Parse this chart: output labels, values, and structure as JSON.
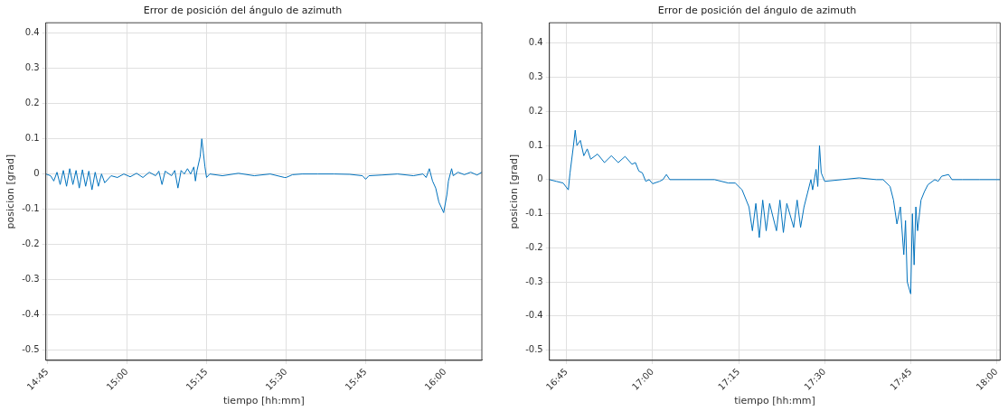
{
  "chart_data": [
    {
      "type": "line",
      "title": "Error de posición del ángulo de azimuth",
      "xlabel": "tiempo [hh:mm]",
      "ylabel": "posicion [grad]",
      "grid": true,
      "marker": "none",
      "line_style": "solid",
      "xlim": [
        14.745,
        16.115
      ],
      "ylim": [
        -0.53,
        0.43
      ],
      "xticks": [
        {
          "value": 14.75,
          "label": "14:45"
        },
        {
          "value": 15,
          "label": "15:00"
        },
        {
          "value": 15.25,
          "label": "15:15"
        },
        {
          "value": 15.5,
          "label": "15:30"
        },
        {
          "value": 15.75,
          "label": "15:45"
        },
        {
          "value": 16,
          "label": "16:00"
        }
      ],
      "yticks": [
        -0.5,
        -0.4,
        -0.3,
        -0.2,
        -0.1,
        0,
        0.1,
        0.2,
        0.3,
        0.4
      ],
      "series": [
        {
          "color": "#0072bd",
          "x": [
            14.745,
            14.76,
            14.77,
            14.78,
            14.79,
            14.8,
            14.81,
            14.82,
            14.83,
            14.84,
            14.85,
            14.86,
            14.87,
            14.88,
            14.89,
            14.9,
            14.91,
            14.92,
            14.93,
            14.95,
            14.97,
            14.99,
            15.01,
            15.03,
            15.05,
            15.07,
            15.09,
            15.1,
            15.11,
            15.12,
            15.14,
            15.15,
            15.16,
            15.17,
            15.18,
            15.19,
            15.2,
            15.21,
            15.215,
            15.22,
            15.23,
            15.235,
            15.24,
            15.245,
            15.25,
            15.26,
            15.3,
            15.35,
            15.4,
            15.45,
            15.495,
            15.5,
            15.52,
            15.55,
            15.6,
            15.65,
            15.7,
            15.74,
            15.75,
            15.76,
            15.8,
            15.85,
            15.9,
            15.93,
            15.94,
            15.95,
            15.96,
            15.97,
            15.98,
            15.995,
            16.005,
            16.01,
            16.02,
            16.025,
            16.04,
            16.06,
            16.08,
            16.1,
            16.115
          ],
          "values": [
            0,
            -0.005,
            -0.02,
            0.005,
            -0.03,
            0.01,
            -0.035,
            0.015,
            -0.03,
            0.01,
            -0.04,
            0.012,
            -0.035,
            0.008,
            -0.045,
            0.005,
            -0.035,
            0,
            -0.025,
            -0.005,
            -0.01,
            0,
            -0.008,
            0.002,
            -0.01,
            0.005,
            -0.005,
            0.008,
            -0.03,
            0.008,
            -0.005,
            0.01,
            -0.04,
            0.01,
            0,
            0.015,
            0,
            0.02,
            -0.02,
            0.01,
            0.05,
            0.1,
            0.06,
            0.02,
            -0.01,
            0,
            -0.005,
            0.002,
            -0.005,
            0,
            -0.01,
            -0.01,
            -0.002,
            0,
            0,
            0,
            -0.001,
            -0.005,
            -0.015,
            -0.005,
            -0.003,
            0,
            -0.005,
            0,
            -0.01,
            0.015,
            -0.02,
            -0.04,
            -0.08,
            -0.11,
            -0.06,
            -0.02,
            0.015,
            -0.005,
            0.005,
            -0.002,
            0.005,
            -0.003,
            0.005
          ]
        }
      ]
    },
    {
      "type": "line",
      "title": "Error de posición del ángulo de azimuth",
      "xlabel": "tiempo [hh:mm]",
      "ylabel": "posicion [grad]",
      "grid": true,
      "marker": "none",
      "line_style": "solid",
      "xlim": [
        16.7,
        18.01
      ],
      "ylim": [
        -0.53,
        0.46
      ],
      "xticks": [
        {
          "value": 16.75,
          "label": "16:45"
        },
        {
          "value": 17,
          "label": "17:00"
        },
        {
          "value": 17.25,
          "label": "17:15"
        },
        {
          "value": 17.5,
          "label": "17:30"
        },
        {
          "value": 17.75,
          "label": "17:45"
        },
        {
          "value": 18,
          "label": "18:00"
        }
      ],
      "yticks": [
        -0.5,
        -0.4,
        -0.3,
        -0.2,
        -0.1,
        0,
        0.1,
        0.2,
        0.3,
        0.4
      ],
      "series": [
        {
          "color": "#0072bd",
          "x": [
            16.7,
            16.72,
            16.74,
            16.755,
            16.76,
            16.77,
            16.775,
            16.78,
            16.79,
            16.8,
            16.81,
            16.82,
            16.84,
            16.86,
            16.88,
            16.9,
            16.92,
            16.94,
            16.95,
            16.96,
            16.97,
            16.98,
            16.99,
            17,
            17.02,
            17.03,
            17.04,
            17.05,
            17.1,
            17.15,
            17.18,
            17.2,
            17.22,
            17.24,
            17.26,
            17.28,
            17.29,
            17.3,
            17.31,
            17.32,
            17.33,
            17.34,
            17.36,
            17.37,
            17.38,
            17.39,
            17.41,
            17.42,
            17.43,
            17.44,
            17.45,
            17.46,
            17.465,
            17.475,
            17.48,
            17.485,
            17.49,
            17.5,
            17.55,
            17.6,
            17.65,
            17.67,
            17.69,
            17.7,
            17.71,
            17.72,
            17.73,
            17.735,
            17.74,
            17.75,
            17.755,
            17.76,
            17.765,
            17.77,
            17.78,
            17.79,
            17.8,
            17.82,
            17.83,
            17.84,
            17.86,
            17.87,
            17.9,
            17.95,
            18.01
          ],
          "values": [
            0,
            -0.005,
            -0.01,
            -0.03,
            0.02,
            0.1,
            0.145,
            0.1,
            0.115,
            0.07,
            0.09,
            0.06,
            0.075,
            0.05,
            0.07,
            0.05,
            0.068,
            0.045,
            0.05,
            0.025,
            0.02,
            -0.005,
            0,
            -0.012,
            -0.005,
            0,
            0.015,
            0,
            0,
            0,
            0,
            -0.005,
            -0.01,
            -0.01,
            -0.03,
            -0.08,
            -0.15,
            -0.07,
            -0.17,
            -0.06,
            -0.15,
            -0.07,
            -0.15,
            -0.06,
            -0.155,
            -0.07,
            -0.14,
            -0.06,
            -0.14,
            -0.08,
            -0.04,
            0,
            -0.03,
            0.03,
            -0.02,
            0.1,
            0.02,
            -0.005,
            0,
            0.005,
            0,
            0,
            -0.02,
            -0.06,
            -0.13,
            -0.08,
            -0.22,
            -0.12,
            -0.3,
            -0.335,
            -0.1,
            -0.25,
            -0.08,
            -0.15,
            -0.06,
            -0.035,
            -0.015,
            0,
            -0.005,
            0.01,
            0.015,
            0,
            0,
            0,
            0
          ]
        }
      ]
    }
  ]
}
